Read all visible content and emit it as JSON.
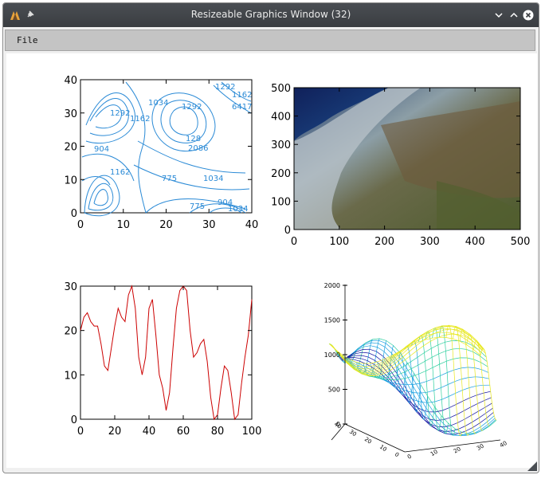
{
  "window": {
    "title": "Resizeable Graphics Window (32)",
    "controls": [
      "minimize-icon",
      "maximize-icon",
      "close-icon"
    ]
  },
  "menu": {
    "file_label": "File"
  },
  "colors": {
    "contour": "#2a8ad6",
    "line": "#cc0000",
    "axes": "#000000"
  },
  "chart_data": [
    {
      "type": "contour",
      "xlim": [
        0,
        40
      ],
      "ylim": [
        0,
        40
      ],
      "xticks": [
        "0",
        "10",
        "20",
        "30",
        "40"
      ],
      "yticks": [
        "0",
        "10",
        "20",
        "30",
        "40"
      ],
      "contour_labels": [
        "1292",
        "1162",
        "1292",
        "1162",
        "1034",
        "904",
        "1162",
        "775",
        "128",
        "2086",
        "1034",
        "775",
        "904",
        "1034",
        "6417",
        "1292"
      ]
    },
    {
      "type": "image",
      "xlim": [
        0,
        500
      ],
      "ylim": [
        0,
        500
      ],
      "xticks": [
        "0",
        "100",
        "200",
        "300",
        "400",
        "500"
      ],
      "yticks": [
        "0",
        "100",
        "200",
        "300",
        "400",
        "500"
      ]
    },
    {
      "type": "line",
      "xlim": [
        0,
        100
      ],
      "ylim": [
        0,
        30
      ],
      "xticks": [
        "0",
        "20",
        "40",
        "60",
        "80",
        "100"
      ],
      "yticks": [
        "0",
        "10",
        "20",
        "30"
      ],
      "x": [
        0,
        2,
        4,
        6,
        8,
        10,
        12,
        14,
        16,
        18,
        20,
        22,
        24,
        26,
        28,
        30,
        32,
        34,
        36,
        38,
        40,
        42,
        44,
        46,
        48,
        50,
        52,
        54,
        56,
        58,
        60,
        62,
        64,
        66,
        68,
        70,
        72,
        74,
        76,
        78,
        80,
        82,
        84,
        86,
        88,
        90,
        92,
        94,
        96,
        98,
        100
      ],
      "y": [
        20,
        23,
        24,
        22,
        21,
        21,
        17,
        12,
        11,
        16,
        21,
        25,
        23,
        22,
        28,
        30,
        25,
        14,
        10,
        14,
        25,
        27,
        19,
        10,
        7,
        2,
        6,
        16,
        25,
        29,
        30,
        29,
        20,
        14,
        15,
        17,
        18,
        13,
        5,
        0,
        1,
        7,
        12,
        11,
        6,
        0,
        1,
        8,
        14,
        19,
        27
      ]
    },
    {
      "type": "surface",
      "zticks": [
        "0",
        "500",
        "1000",
        "1500",
        "2000"
      ],
      "xticks": [
        "0",
        "10",
        "20",
        "30",
        "40"
      ],
      "yticks": [
        "0",
        "10",
        "20",
        "30",
        "40"
      ]
    }
  ]
}
